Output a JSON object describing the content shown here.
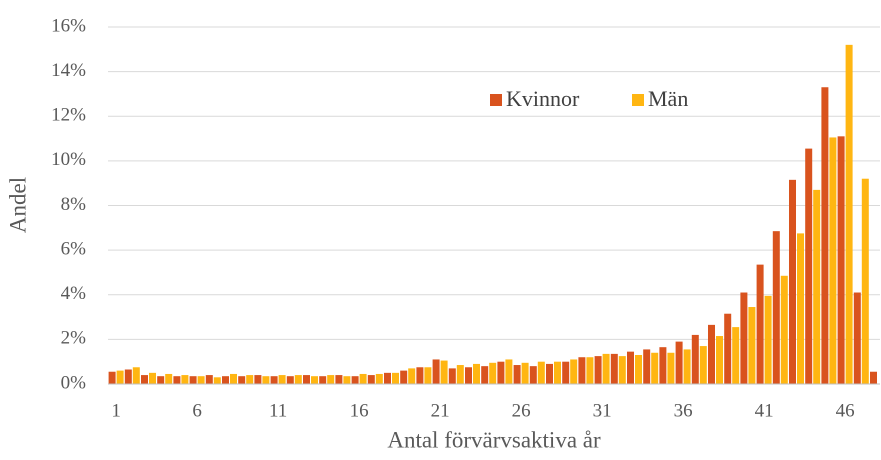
{
  "chart_data": {
    "type": "bar",
    "x_label": "Antal förvärvsaktiva år",
    "y_label": "Andel",
    "categories": [
      "1",
      null,
      null,
      null,
      null,
      "6",
      null,
      null,
      null,
      null,
      "11",
      null,
      null,
      null,
      null,
      "16",
      null,
      null,
      null,
      null,
      "21",
      null,
      null,
      null,
      null,
      "26",
      null,
      null,
      null,
      null,
      "31",
      null,
      null,
      null,
      null,
      "36",
      null,
      null,
      null,
      null,
      "41",
      null,
      null,
      null,
      null,
      "46",
      null,
      null
    ],
    "series": [
      {
        "name": "Kvinnor",
        "color": "#d9531e",
        "values": [
          0.55,
          0.65,
          0.4,
          0.35,
          0.35,
          0.35,
          0.4,
          0.35,
          0.35,
          0.4,
          0.35,
          0.35,
          0.4,
          0.35,
          0.4,
          0.35,
          0.4,
          0.5,
          0.6,
          0.75,
          1.1,
          0.7,
          0.75,
          0.8,
          1.0,
          0.85,
          0.8,
          0.9,
          1.0,
          1.2,
          1.25,
          1.35,
          1.45,
          1.55,
          1.65,
          1.9,
          2.2,
          2.65,
          3.15,
          4.1,
          5.35,
          6.85,
          9.15,
          10.55,
          13.3,
          11.1,
          4.1,
          0.55
        ]
      },
      {
        "name": "Män",
        "color": "#ffb612",
        "values": [
          0.6,
          0.75,
          0.5,
          0.45,
          0.4,
          0.35,
          0.3,
          0.45,
          0.4,
          0.35,
          0.4,
          0.4,
          0.35,
          0.4,
          0.35,
          0.45,
          0.45,
          0.5,
          0.7,
          0.75,
          1.05,
          0.85,
          0.9,
          0.95,
          1.1,
          0.95,
          1.0,
          1.0,
          1.1,
          1.2,
          1.35,
          1.25,
          1.3,
          1.4,
          1.4,
          1.55,
          1.7,
          2.15,
          2.55,
          3.45,
          3.95,
          4.85,
          6.75,
          8.7,
          11.05,
          15.2,
          9.2,
          null
        ]
      }
    ],
    "ylim": [
      0,
      16
    ],
    "yticks": [
      {
        "value": 0,
        "label": "0%"
      },
      {
        "value": 2,
        "label": "2%"
      },
      {
        "value": 4,
        "label": "4%"
      },
      {
        "value": 6,
        "label": "6%"
      },
      {
        "value": 8,
        "label": "8%"
      },
      {
        "value": 10,
        "label": "10%"
      },
      {
        "value": 12,
        "label": "12%"
      },
      {
        "value": 14,
        "label": "14%"
      },
      {
        "value": 16,
        "label": "16%"
      }
    ],
    "grid": true,
    "legend": "top"
  }
}
